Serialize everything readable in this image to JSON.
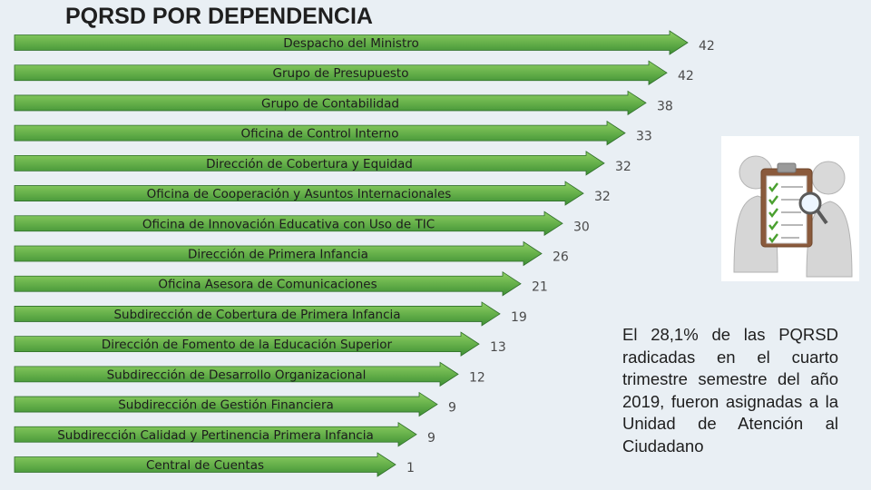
{
  "title": "PQRSD POR DEPENDENCIA",
  "note": "El 28,1% de las PQRSD radicadas en el cuarto trimestre semestre del año 2019, fueron asignadas a la Unidad de Atención al Ciudadano",
  "colors": {
    "bar_light": "#8ecf63",
    "bar_dark": "#3e8f35",
    "bar_edge": "#2f6e2a",
    "background": "#e9eff4"
  },
  "icons": {
    "illustration": "clipboard-checklist-people-icon"
  },
  "chart_data": {
    "type": "bar",
    "orientation": "horizontal",
    "title": "PQRSD POR DEPENDENCIA",
    "categories": [
      "Despacho del Ministro",
      "Grupo de Presupuesto",
      "Grupo de Contabilidad",
      "Oficina de Control Interno",
      "Dirección de Cobertura y Equidad",
      "Oficina de Cooperación y Asuntos Internacionales",
      "Oficina de Innovación Educativa con Uso de TIC",
      "Dirección de Primera Infancia",
      "Oficina Asesora de Comunicaciones",
      "Subdirección de Cobertura de Primera Infancia",
      "Dirección de Fomento de la Educación Superior",
      "Subdirección de Desarrollo Organizacional",
      "Subdirección de Gestión Financiera",
      "Subdirección Calidad y Pertinencia Primera Infancia",
      "Central de Cuentas"
    ],
    "values": [
      42,
      42,
      38,
      33,
      32,
      32,
      30,
      26,
      21,
      19,
      13,
      12,
      9,
      9,
      1
    ],
    "xlabel": "",
    "ylabel": "",
    "grid": false,
    "legend": "none"
  }
}
